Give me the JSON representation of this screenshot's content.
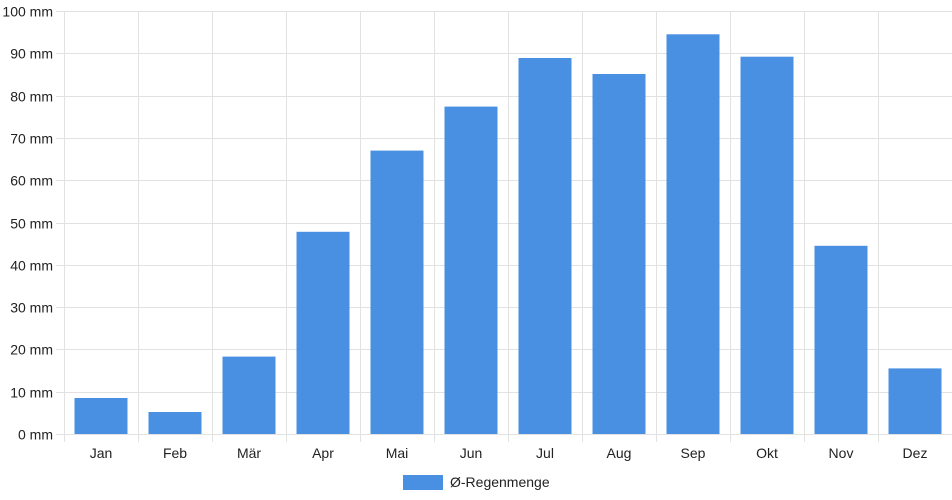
{
  "chart_data": {
    "type": "bar",
    "categories": [
      "Jan",
      "Feb",
      "Mär",
      "Apr",
      "Mai",
      "Jun",
      "Jul",
      "Aug",
      "Sep",
      "Okt",
      "Nov",
      "Dez"
    ],
    "series": [
      {
        "name": "Ø-Regenmenge",
        "color": "#4a90e2",
        "values": [
          8.5,
          5.2,
          18.3,
          47.8,
          67.0,
          77.4,
          88.9,
          85.1,
          94.5,
          89.2,
          44.5,
          15.5
        ]
      }
    ],
    "y_ticks": [
      "0 mm",
      "10 mm",
      "20 mm",
      "30 mm",
      "40 mm",
      "50 mm",
      "60 mm",
      "70 mm",
      "80 mm",
      "90 mm",
      "100 mm"
    ],
    "ylim": [
      0,
      100
    ],
    "grid": true,
    "legend_position": "bottom-center"
  }
}
